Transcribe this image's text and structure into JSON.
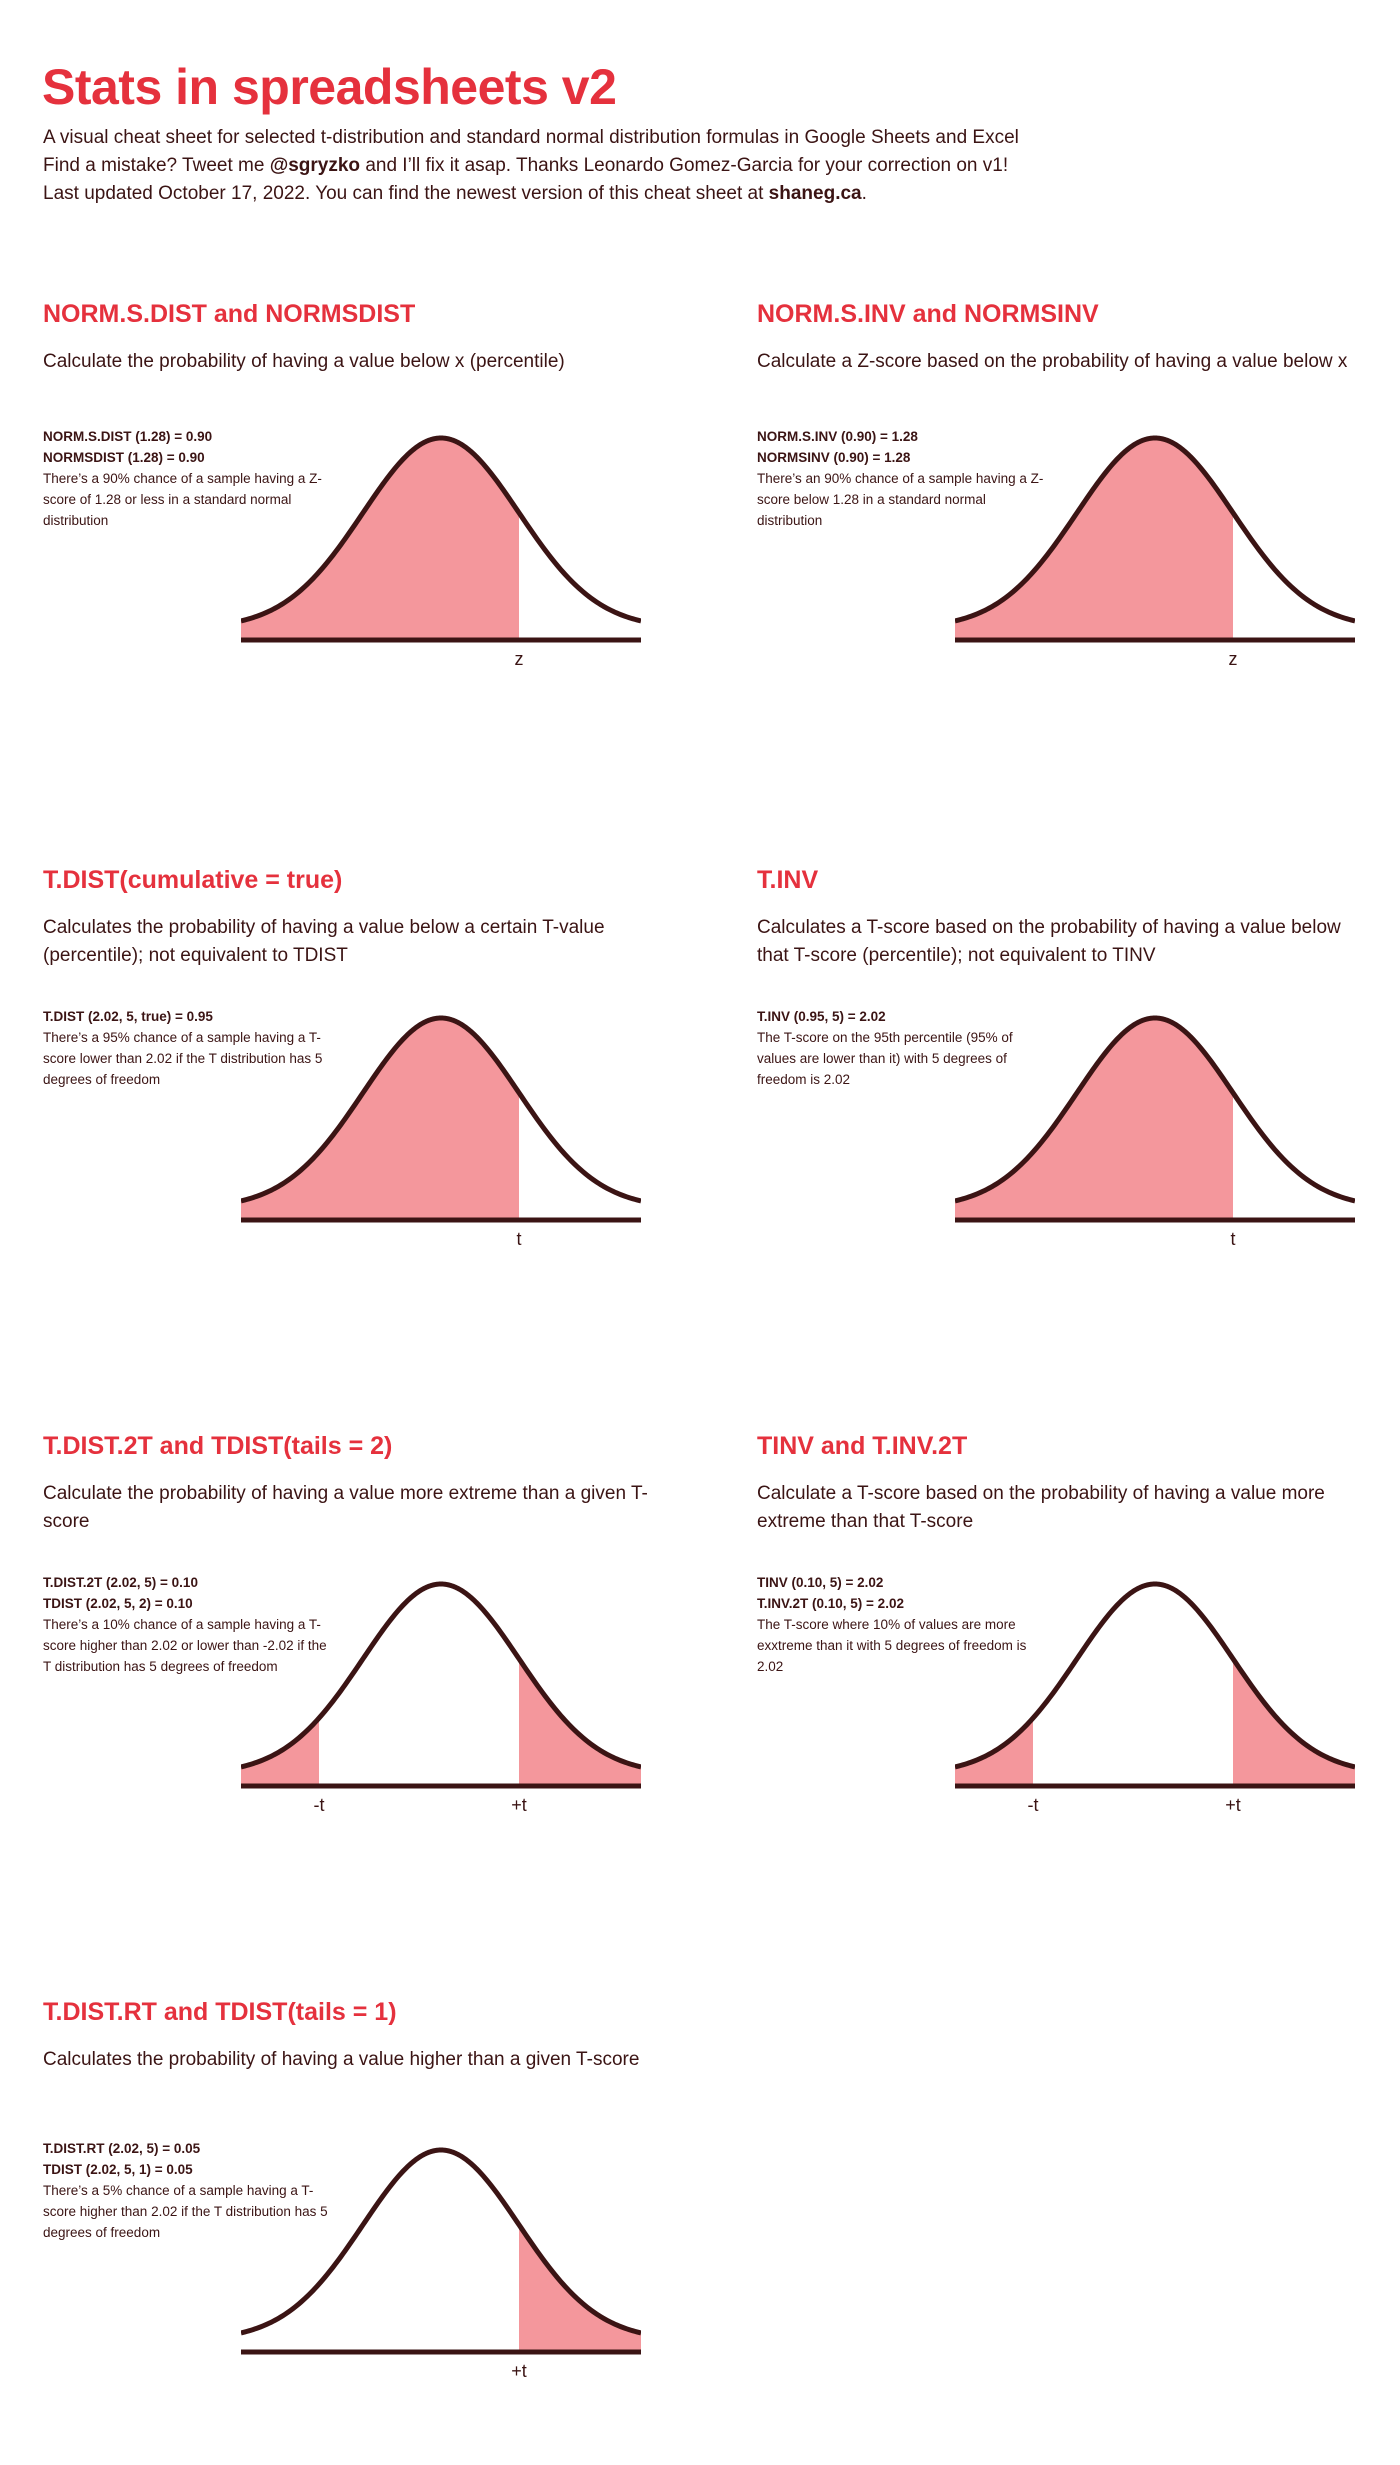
{
  "header": {
    "title": "Stats in spreadsheets v2",
    "subtitle": "A visual cheat sheet for selected t-distribution and standard normal distribution formulas in Google Sheets and Excel",
    "line2_before": "Find a mistake? Tweet me ",
    "line2_handle": "@sgryzko",
    "line2_after": " and I’ll fix it asap. Thanks Leonardo Gomez-Garcia for your correction on v1!",
    "line3_before": "Last updated October 17, 2022. You can find the newest version of this cheat sheet at ",
    "line3_link": "shaneg.ca",
    "line3_after": "."
  },
  "colors": {
    "accent": "#e5313d",
    "text": "#3b1414",
    "fill": "#f4979c",
    "curve": "#3b1414"
  },
  "panels": [
    {
      "title": "NORM.S.DIST and NORMSDIST",
      "description": "Calculate the probability of having a value below x (percentile)",
      "formulas": [
        "NORM.S.DIST (1.28) = 0.90",
        "NORMSDIST (1.28) = 0.90"
      ],
      "note": "There’s a 90% chance of a sample having a Z-score of 1.28 or less in a standard normal distribution",
      "shading": "left",
      "labels": [
        "z"
      ],
      "label_left": "",
      "label_right": "z"
    },
    {
      "title": "NORM.S.INV and NORMSINV",
      "description": "Calculate a Z-score based on the probability of having a value below x",
      "formulas": [
        "NORM.S.INV (0.90) = 1.28",
        "NORMSINV (0.90) = 1.28"
      ],
      "note": "There’s an 90% chance of a sample having a Z-score below 1.28 in a standard normal distribution",
      "shading": "left",
      "label_left": "",
      "label_right": "z"
    },
    {
      "title": "T.DIST(cumulative = true)",
      "description": "Calculates the probability of having a value below a certain T-value (percentile); not equivalent to TDIST",
      "formulas": [
        "T.DIST (2.02, 5, true) = 0.95"
      ],
      "note": "There’s a 95% chance of a sample having a T-score lower than 2.02 if the T distribution has 5 degrees of freedom",
      "shading": "left",
      "label_left": "",
      "label_right": "t"
    },
    {
      "title": "T.INV",
      "description": "Calculates a T-score based on the probability of having a value below that T-score (percentile); not equivalent to TINV",
      "formulas": [
        "T.INV (0.95, 5) = 2.02"
      ],
      "note": "The T-score on the 95th percentile (95% of values are lower than it) with 5 degrees of freedom is 2.02",
      "shading": "left",
      "label_left": "",
      "label_right": "t"
    },
    {
      "title": "T.DIST.2T and TDIST(tails = 2)",
      "description": "Calculate the probability of having a value more extreme than a given T-score",
      "formulas": [
        "T.DIST.2T (2.02, 5) = 0.10",
        "TDIST (2.02, 5, 2) = 0.10"
      ],
      "note": "There’s a 10% chance of a sample having a T-score higher than 2.02 or lower than -2.02 if the T distribution has 5 degrees of freedom",
      "shading": "two",
      "label_left": "-t",
      "label_right": "+t"
    },
    {
      "title": "TINV and T.INV.2T",
      "description": "Calculate a T-score based on the probability of having a value more extreme than that T-score",
      "formulas": [
        "TINV (0.10, 5) = 2.02",
        "T.INV.2T (0.10, 5) = 2.02"
      ],
      "note": "The T-score where 10% of values are more exxtreme than it with 5 degrees of freedom is 2.02",
      "shading": "two",
      "label_left": "-t",
      "label_right": "+t"
    },
    {
      "title": "T.DIST.RT and TDIST(tails = 1)",
      "description": "Calculates the probability of having a value higher than a given T-score",
      "formulas": [
        "T.DIST.RT (2.02, 5) = 0.05",
        "TDIST (2.02, 5, 1) = 0.05"
      ],
      "note": "There’s a 5% chance of a sample having a T-score higher than 2.02 if the T distribution has 5 degrees of freedom",
      "shading": "right",
      "label_left": "",
      "label_right": "+t"
    }
  ]
}
